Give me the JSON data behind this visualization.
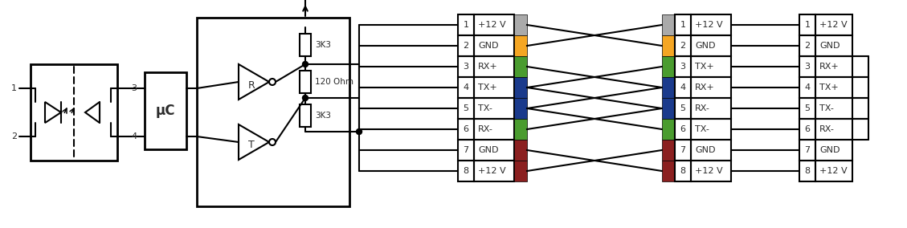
{
  "bg": "#ffffff",
  "lc": "#000000",
  "tc": "#2b2b2b",
  "orange": "#f5a623",
  "green": "#4a9c2f",
  "blue": "#1a3a8c",
  "dark_red": "#8b2020",
  "gray": "#aaaaaa",
  "c1_labels": [
    "+12 V",
    "GND",
    "RX+",
    "TX+",
    "TX-",
    "RX-",
    "GND",
    "+12 V"
  ],
  "c2_labels": [
    "+12 V",
    "GND",
    "TX+",
    "RX+",
    "RX-",
    "TX-",
    "GND",
    "+12 V"
  ],
  "c3_labels": [
    "+12 V",
    "GND",
    "RX+",
    "TX+",
    "TX-",
    "RX-",
    "GND",
    "+12 V"
  ],
  "res1": "3K3",
  "res2": "120 Ohm",
  "res3": "3K3",
  "uc": "μC",
  "r_lbl": "R",
  "t_lbl": "T",
  "rh": 26,
  "cnw": 20,
  "clw": 50,
  "ccw": 16
}
